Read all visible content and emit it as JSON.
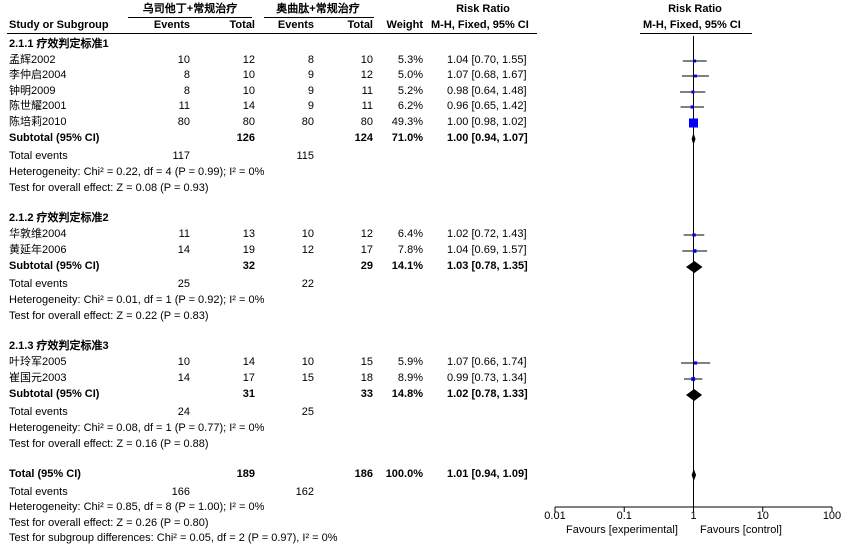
{
  "header": {
    "group1": "乌司他丁+常规治疗",
    "group2": "奥曲肽+常规治疗",
    "rr_left": "Risk Ratio",
    "rr_right": "Risk Ratio",
    "col_study": "Study or Subgroup",
    "col_events1": "Events",
    "col_total1": "Total",
    "col_events2": "Events",
    "col_total2": "Total",
    "col_weight": "Weight",
    "col_method_left": "M-H, Fixed, 95% CI",
    "col_method_right": "M-H, Fixed, 95% CI"
  },
  "subgroups": [
    {
      "title": "2.1.1 疗效判定标准1",
      "studies": [
        {
          "name": "孟辉2002",
          "e1": "10",
          "t1": "12",
          "e2": "8",
          "t2": "10",
          "weight": "5.3%",
          "ci": "1.04 [0.70, 1.55]"
        },
        {
          "name": "李仲启2004",
          "e1": "8",
          "t1": "10",
          "e2": "9",
          "t2": "12",
          "weight": "5.0%",
          "ci": "1.07 [0.68, 1.67]"
        },
        {
          "name": "钟明2009",
          "e1": "8",
          "t1": "10",
          "e2": "9",
          "t2": "11",
          "weight": "5.2%",
          "ci": "0.98 [0.64, 1.48]"
        },
        {
          "name": "陈世耀2001",
          "e1": "11",
          "t1": "14",
          "e2": "9",
          "t2": "11",
          "weight": "6.2%",
          "ci": "0.96 [0.65, 1.42]"
        },
        {
          "name": "陈培莉2010",
          "e1": "80",
          "t1": "80",
          "e2": "80",
          "t2": "80",
          "weight": "49.3%",
          "ci": "1.00 [0.98, 1.02]"
        }
      ],
      "subtotal": {
        "label": "Subtotal (95% CI)",
        "t1": "126",
        "t2": "124",
        "weight": "71.0%",
        "ci": "1.00 [0.94, 1.07]"
      },
      "total_events": {
        "label": "Total events",
        "e1": "117",
        "e2": "115"
      },
      "heterogeneity": "Heterogeneity: Chi² = 0.22, df = 4 (P = 0.99); I² = 0%",
      "overall": "Test for overall effect: Z = 0.08 (P = 0.93)"
    },
    {
      "title": "2.1.2 疗效判定标准2",
      "studies": [
        {
          "name": "华敦维2004",
          "e1": "11",
          "t1": "13",
          "e2": "10",
          "t2": "12",
          "weight": "6.4%",
          "ci": "1.02 [0.72, 1.43]"
        },
        {
          "name": "黄延年2006",
          "e1": "14",
          "t1": "19",
          "e2": "12",
          "t2": "17",
          "weight": "7.8%",
          "ci": "1.04 [0.69, 1.57]"
        }
      ],
      "subtotal": {
        "label": "Subtotal (95% CI)",
        "t1": "32",
        "t2": "29",
        "weight": "14.1%",
        "ci": "1.03 [0.78, 1.35]"
      },
      "total_events": {
        "label": "Total events",
        "e1": "25",
        "e2": "22"
      },
      "heterogeneity": "Heterogeneity: Chi² = 0.01, df = 1 (P = 0.92); I² = 0%",
      "overall": "Test for overall effect: Z = 0.22 (P = 0.83)"
    },
    {
      "title": "2.1.3 疗效判定标准3",
      "studies": [
        {
          "name": "叶玲军2005",
          "e1": "10",
          "t1": "14",
          "e2": "10",
          "t2": "15",
          "weight": "5.9%",
          "ci": "1.07 [0.66, 1.74]"
        },
        {
          "name": "崔国元2003",
          "e1": "14",
          "t1": "17",
          "e2": "15",
          "t2": "18",
          "weight": "8.9%",
          "ci": "0.99 [0.73, 1.34]"
        }
      ],
      "subtotal": {
        "label": "Subtotal (95% CI)",
        "t1": "31",
        "t2": "33",
        "weight": "14.8%",
        "ci": "1.02 [0.78, 1.33]"
      },
      "total_events": {
        "label": "Total events",
        "e1": "24",
        "e2": "25"
      },
      "heterogeneity": "Heterogeneity: Chi² = 0.08, df = 1 (P = 0.77); I² = 0%",
      "overall": "Test for overall effect: Z = 0.16 (P = 0.88)"
    }
  ],
  "total": {
    "label": "Total (95% CI)",
    "t1": "189",
    "t2": "186",
    "weight": "100.0%",
    "ci": "1.01 [0.94, 1.09]",
    "events_label": "Total events",
    "e1": "166",
    "e2": "162",
    "heterogeneity": "Heterogeneity: Chi² = 0.85, df = 8 (P = 1.00); I² = 0%",
    "overall": "Test for overall effect: Z = 0.26 (P = 0.80)",
    "subgroup_diff": "Test for subgroup differences: Chi² = 0.05, df = 2 (P = 0.97), I² = 0%"
  },
  "axis": {
    "tick_labels": [
      "0.01",
      "0.1",
      "1",
      "10",
      "100"
    ],
    "favours_left": "Favours [experimental]",
    "favours_right": "Favours [control]"
  },
  "colors": {
    "study_marker": "#0000ff",
    "diamond": "#000000",
    "text": "#000000"
  },
  "chart_data": {
    "type": "forest",
    "title": "Risk Ratio M-H, Fixed, 95% CI",
    "x_scale": "log",
    "xlim": [
      0.01,
      100
    ],
    "xticks": [
      0.01,
      0.1,
      1,
      10,
      100
    ],
    "xlabel_left": "Favours [experimental]",
    "xlabel_right": "Favours [control]",
    "null_line": 1,
    "studies": [
      {
        "name": "孟辉2002",
        "subgroup": "2.1.1 疗效判定标准1",
        "rr": 1.04,
        "lo": 0.7,
        "hi": 1.55,
        "weight": 5.3
      },
      {
        "name": "李仲启2004",
        "subgroup": "2.1.1 疗效判定标准1",
        "rr": 1.07,
        "lo": 0.68,
        "hi": 1.67,
        "weight": 5.0
      },
      {
        "name": "钟明2009",
        "subgroup": "2.1.1 疗效判定标准1",
        "rr": 0.98,
        "lo": 0.64,
        "hi": 1.48,
        "weight": 5.2
      },
      {
        "name": "陈世耀2001",
        "subgroup": "2.1.1 疗效判定标准1",
        "rr": 0.96,
        "lo": 0.65,
        "hi": 1.42,
        "weight": 6.2
      },
      {
        "name": "陈培莉2010",
        "subgroup": "2.1.1 疗效判定标准1",
        "rr": 1.0,
        "lo": 0.98,
        "hi": 1.02,
        "weight": 49.3
      },
      {
        "name": "华敦维2004",
        "subgroup": "2.1.2 疗效判定标准2",
        "rr": 1.02,
        "lo": 0.72,
        "hi": 1.43,
        "weight": 6.4
      },
      {
        "name": "黄延年2006",
        "subgroup": "2.1.2 疗效判定标准2",
        "rr": 1.04,
        "lo": 0.69,
        "hi": 1.57,
        "weight": 7.8
      },
      {
        "name": "叶玲军2005",
        "subgroup": "2.1.3 疗效判定标准3",
        "rr": 1.07,
        "lo": 0.66,
        "hi": 1.74,
        "weight": 5.9
      },
      {
        "name": "崔国元2003",
        "subgroup": "2.1.3 疗效判定标准3",
        "rr": 0.99,
        "lo": 0.73,
        "hi": 1.34,
        "weight": 8.9
      }
    ],
    "pooled": [
      {
        "name": "Subtotal 2.1.1",
        "rr": 1.0,
        "lo": 0.94,
        "hi": 1.07
      },
      {
        "name": "Subtotal 2.1.2",
        "rr": 1.03,
        "lo": 0.78,
        "hi": 1.35
      },
      {
        "name": "Subtotal 2.1.3",
        "rr": 1.02,
        "lo": 0.78,
        "hi": 1.33
      },
      {
        "name": "Total",
        "rr": 1.01,
        "lo": 0.94,
        "hi": 1.09
      }
    ]
  }
}
